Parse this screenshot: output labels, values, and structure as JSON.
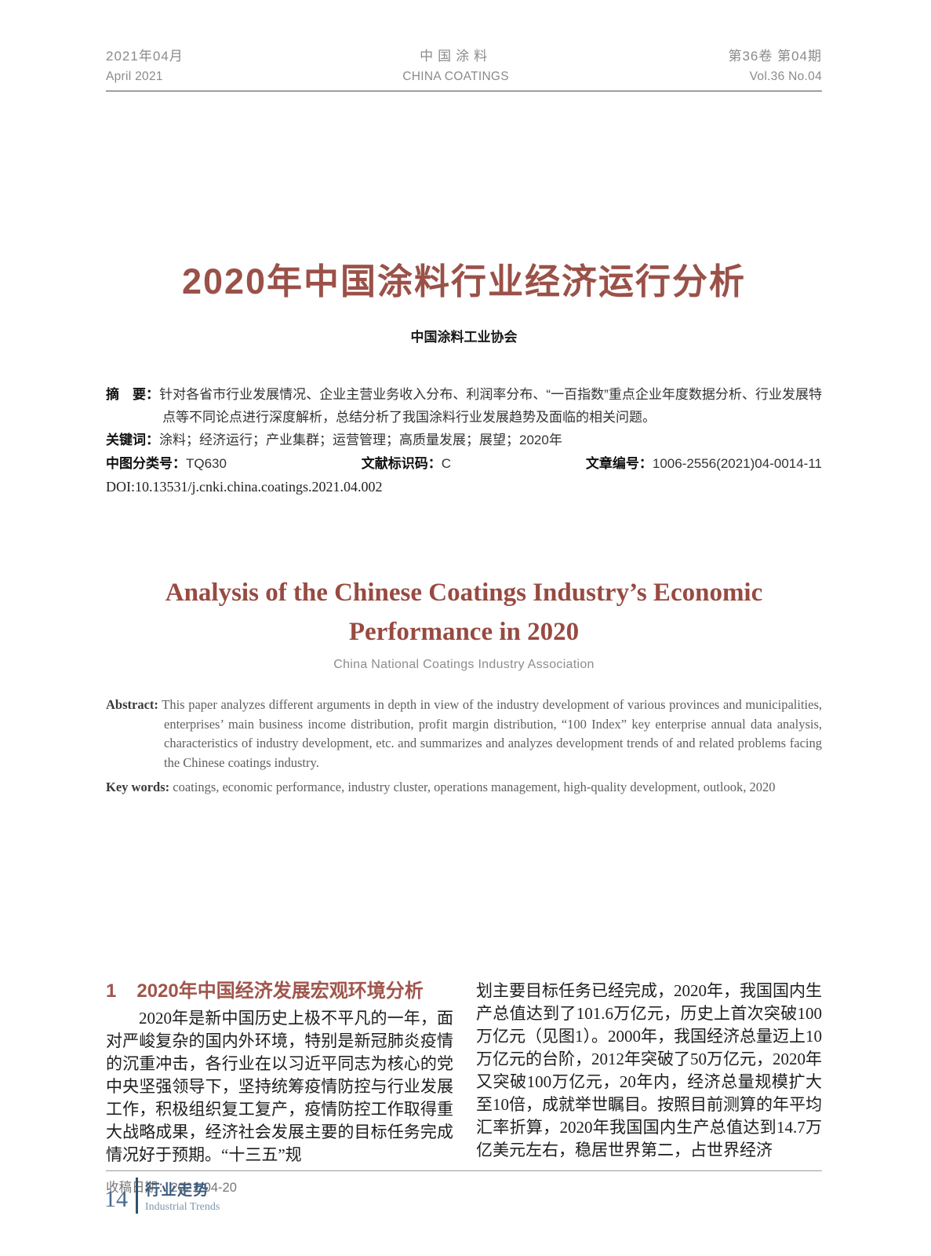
{
  "header": {
    "date_zh": "2021年04月",
    "date_en": "April 2021",
    "journal_zh": "中国涂料",
    "journal_en": "CHINA COATINGS",
    "volume_zh": "第36卷 第04期",
    "volume_en": "Vol.36  No.04"
  },
  "title_zh": "2020年中国涂料行业经济运行分析",
  "author_zh": "中国涂料工业协会",
  "abstract_zh": {
    "label": "摘　要：",
    "text": "针对各省市行业发展情况、企业主营业务收入分布、利润率分布、“一百指数”重点企业年度数据分析、行业发展特点等不同论点进行深度解析，总结分析了我国涂料行业发展趋势及面临的相关问题。"
  },
  "keywords_zh": {
    "label": "关键词：",
    "text": "涂料；经济运行；产业集群；运营管理；高质量发展；展望；2020年"
  },
  "meta": {
    "clc_label": "中图分类号：",
    "clc_value": "TQ630",
    "doc_code_label": "文献标识码：",
    "doc_code_value": "C",
    "article_id_label": "文章编号：",
    "article_id_value": "1006-2556(2021)04-0014-11",
    "doi": "DOI:10.13531/j.cnki.china.coatings.2021.04.002"
  },
  "title_en": {
    "line1": "Analysis of the Chinese Coatings Industry’s Economic",
    "line2": "Performance in 2020"
  },
  "author_en": "China National Coatings Industry Association",
  "abstract_en": {
    "label": "Abstract:",
    "text": "This paper analyzes different arguments in depth in view of the industry development of various provinces and municipalities, enterprises’ main business income distribution, profit margin distribution, “100 Index” key enterprise annual data analysis, characteristics of industry development, etc. and summarizes and analyzes development trends of and related problems facing the Chinese coatings industry."
  },
  "keywords_en": {
    "label": "Key words:",
    "text": "coatings, economic performance, industry cluster, operations management, high-quality development, outlook, 2020"
  },
  "section1": {
    "number": "1",
    "title": "2020年中国经济发展宏观环境分析"
  },
  "body": {
    "left_paragraph": "2020年是新中国历史上极不平凡的一年，面对严峻复杂的国内外环境，特别是新冠肺炎疫情的沉重冲击，各行业在以习近平同志为核心的党中央坚强领导下，坚持统筹疫情防控与行业发展工作，积极组织复工复产，疫情防控工作取得重大战略成果，经济社会发展主要的目标任务完成情况好于预期。“十三五”规",
    "right_paragraph": "划主要目标任务已经完成，2020年，我国国内生产总值达到了101.6万亿元，历史上首次突破100万亿元（见图1）。2000年，我国经济总量迈上10万亿元的台阶，2012年突破了50万亿元，2020年又突破100万亿元，20年内，经济总量规模扩大至10倍，成就举世瞩目。按照目前测算的年平均汇率折算，2020年我国国内生产总值达到14.7万亿美元左右，稳居世界第二，占世界经济"
  },
  "footnote": {
    "label": "收稿日期：",
    "date": "2021-04-20"
  },
  "footer": {
    "page_number": "14",
    "column_zh": "行业走势",
    "column_en": "Industrial Trends"
  },
  "colors": {
    "accent_maroon": "#9a5148",
    "title_en_maroon": "#984a41",
    "footer_blue": "#3d5c7e",
    "footer_bar_blue": "#2e5170",
    "header_gray": "#8b8b8b"
  }
}
